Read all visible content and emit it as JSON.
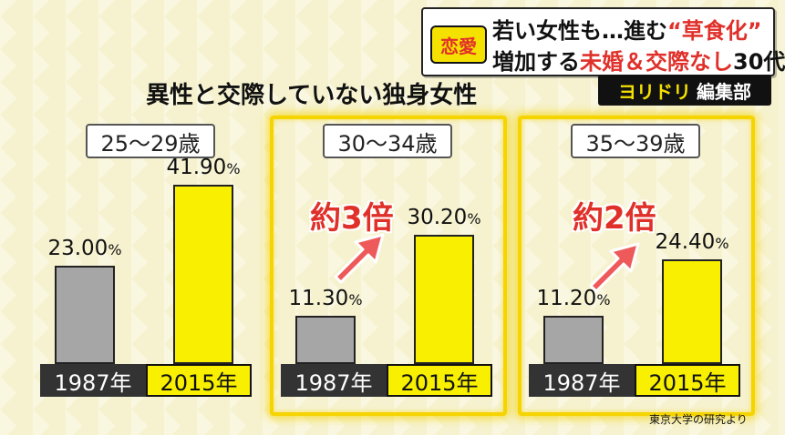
{
  "header": {
    "badge": "恋愛",
    "line1_prefix": "若い女性も…進む",
    "line1_highlight": "“草食化”",
    "line2_prefix": "増加する",
    "line2_highlight": "未婚＆交際なし",
    "line2_suffix": "30代"
  },
  "source_tag": {
    "brand": "ヨリドリ",
    "dept": "編集部"
  },
  "citation": "東京大学の研究より",
  "chart_data": {
    "type": "bar",
    "title": "異性と交際していない独身女性",
    "series_names": [
      "1987年",
      "2015年"
    ],
    "ylim": [
      0,
      50
    ],
    "groups": [
      {
        "category": "25～29歳",
        "values": [
          23.0,
          41.9
        ],
        "labels": [
          "23.00",
          "41.90"
        ],
        "unit": "%",
        "ratio": ""
      },
      {
        "category": "30～34歳",
        "values": [
          11.3,
          30.2
        ],
        "labels": [
          "11.30",
          "30.20"
        ],
        "unit": "%",
        "ratio": "約3倍"
      },
      {
        "category": "35～39歳",
        "values": [
          11.2,
          24.4
        ],
        "labels": [
          "11.20",
          "24.40"
        ],
        "unit": "%",
        "ratio": "約2倍"
      }
    ],
    "colors": {
      "1987": "#a6a6a6",
      "2015": "#f8f000",
      "highlight": "#f5d400",
      "ratio": "#e0302a"
    }
  }
}
